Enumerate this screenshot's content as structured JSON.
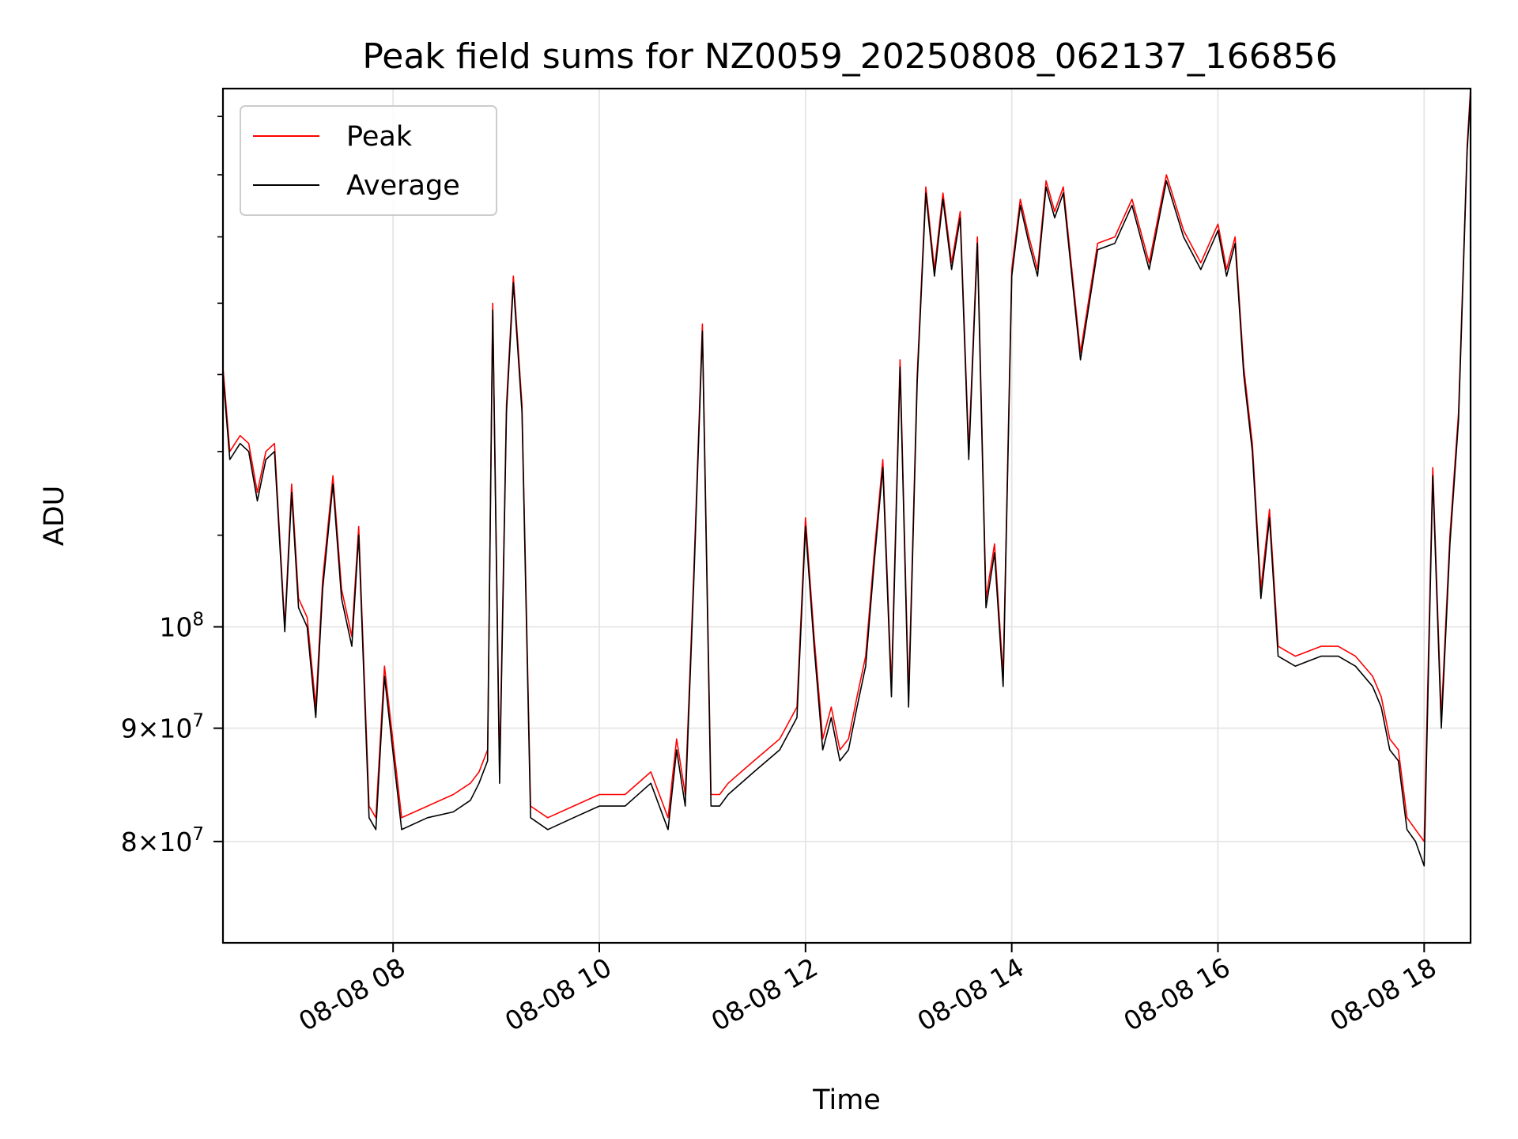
{
  "chart_data": {
    "type": "line",
    "title": "Peak field sums for NZ0059_20250808_062137_166856",
    "xlabel": "Time",
    "ylabel": "ADU",
    "yscale": "log",
    "ylim": [
      72000000,
      175000000
    ],
    "xlim": [
      "08-08 06:21",
      "08-08 18:27"
    ],
    "grid": true,
    "legend_position": "top-left",
    "x_ticks": [
      {
        "value": "08-08 08:00",
        "label": "08-08 08"
      },
      {
        "value": "08-08 10:00",
        "label": "08-08 10"
      },
      {
        "value": "08-08 12:00",
        "label": "08-08 12"
      },
      {
        "value": "08-08 14:00",
        "label": "08-08 14"
      },
      {
        "value": "08-08 16:00",
        "label": "08-08 16"
      },
      {
        "value": "08-08 18:00",
        "label": "08-08 18"
      }
    ],
    "y_ticks": [
      {
        "value": 80000000,
        "mantissa": "8",
        "exp": "7"
      },
      {
        "value": 90000000,
        "mantissa": "9",
        "exp": "7"
      },
      {
        "value": 100000000,
        "mantissa": "",
        "exp": "8"
      }
    ],
    "x": [
      "08-08 06:21",
      "08-08 06:25",
      "08-08 06:31",
      "08-08 06:36",
      "08-08 06:41",
      "08-08 06:46",
      "08-08 06:51",
      "08-08 06:57",
      "08-08 07:01",
      "08-08 07:05",
      "08-08 07:10",
      "08-08 07:15",
      "08-08 07:19",
      "08-08 07:25",
      "08-08 07:30",
      "08-08 07:36",
      "08-08 07:40",
      "08-08 07:46",
      "08-08 07:50",
      "08-08 07:55",
      "08-08 08:05",
      "08-08 08:20",
      "08-08 08:35",
      "08-08 08:45",
      "08-08 08:50",
      "08-08 08:55",
      "08-08 08:58",
      "08-08 09:02",
      "08-08 09:06",
      "08-08 09:10",
      "08-08 09:15",
      "08-08 09:20",
      "08-08 09:30",
      "08-08 09:45",
      "08-08 10:00",
      "08-08 10:15",
      "08-08 10:30",
      "08-08 10:40",
      "08-08 10:45",
      "08-08 10:50",
      "08-08 10:55",
      "08-08 11:00",
      "08-08 11:05",
      "08-08 11:10",
      "08-08 11:15",
      "08-08 11:30",
      "08-08 11:45",
      "08-08 11:55",
      "08-08 12:00",
      "08-08 12:05",
      "08-08 12:10",
      "08-08 12:15",
      "08-08 12:20",
      "08-08 12:25",
      "08-08 12:30",
      "08-08 12:35",
      "08-08 12:40",
      "08-08 12:45",
      "08-08 12:50",
      "08-08 12:55",
      "08-08 13:00",
      "08-08 13:05",
      "08-08 13:10",
      "08-08 13:15",
      "08-08 13:20",
      "08-08 13:25",
      "08-08 13:30",
      "08-08 13:35",
      "08-08 13:40",
      "08-08 13:45",
      "08-08 13:50",
      "08-08 13:55",
      "08-08 14:00",
      "08-08 14:05",
      "08-08 14:10",
      "08-08 14:15",
      "08-08 14:20",
      "08-08 14:25",
      "08-08 14:30",
      "08-08 14:40",
      "08-08 14:50",
      "08-08 15:00",
      "08-08 15:10",
      "08-08 15:20",
      "08-08 15:30",
      "08-08 15:40",
      "08-08 15:50",
      "08-08 16:00",
      "08-08 16:05",
      "08-08 16:10",
      "08-08 16:15",
      "08-08 16:20",
      "08-08 16:25",
      "08-08 16:30",
      "08-08 16:35",
      "08-08 16:45",
      "08-08 17:00",
      "08-08 17:10",
      "08-08 17:20",
      "08-08 17:30",
      "08-08 17:35",
      "08-08 17:40",
      "08-08 17:45",
      "08-08 17:50",
      "08-08 17:55",
      "08-08 18:00",
      "08-08 18:05",
      "08-08 18:10",
      "08-08 18:15",
      "08-08 18:20",
      "08-08 18:25",
      "08-08 18:27"
    ],
    "series": [
      {
        "name": "Peak",
        "color": "#ff0000",
        "values": [
          131000000,
          120000000,
          122000000,
          121000000,
          115000000,
          120000000,
          121000000,
          100000000,
          116000000,
          103000000,
          101000000,
          92000000,
          105000000,
          117000000,
          104000000,
          99000000,
          111000000,
          83000000,
          82000000,
          96000000,
          82000000,
          83000000,
          84000000,
          85000000,
          86000000,
          88000000,
          140000000,
          86000000,
          126000000,
          144000000,
          126000000,
          83000000,
          82000000,
          83000000,
          84000000,
          84000000,
          86000000,
          82000000,
          89000000,
          84000000,
          106000000,
          137000000,
          84000000,
          84000000,
          85000000,
          87000000,
          89000000,
          92000000,
          112000000,
          99000000,
          89000000,
          92000000,
          88000000,
          89000000,
          93000000,
          97000000,
          108000000,
          119000000,
          94000000,
          132000000,
          93000000,
          130000000,
          158000000,
          145000000,
          157000000,
          146000000,
          154000000,
          120000000,
          150000000,
          103000000,
          109000000,
          95000000,
          145000000,
          156000000,
          150000000,
          145000000,
          159000000,
          154000000,
          158000000,
          133000000,
          149000000,
          150000000,
          156000000,
          146000000,
          160000000,
          151000000,
          146000000,
          152000000,
          145000000,
          150000000,
          131000000,
          121000000,
          104000000,
          113000000,
          98000000,
          97000000,
          98000000,
          98000000,
          97000000,
          95000000,
          93000000,
          89000000,
          88000000,
          82000000,
          81000000,
          80000000,
          118000000,
          91000000,
          110000000,
          125000000,
          165000000,
          175000000
        ]
      },
      {
        "name": "Average",
        "color": "#000000",
        "values": [
          130000000,
          119000000,
          121000000,
          120000000,
          114000000,
          119000000,
          120000000,
          99500000,
          115000000,
          102000000,
          100000000,
          91000000,
          104000000,
          116000000,
          103000000,
          98000000,
          110000000,
          82000000,
          81000000,
          95000000,
          81000000,
          82000000,
          82500000,
          83500000,
          85000000,
          87000000,
          139000000,
          85000000,
          125000000,
          143000000,
          125000000,
          82000000,
          81000000,
          82000000,
          83000000,
          83000000,
          85000000,
          81000000,
          88000000,
          83000000,
          105000000,
          136000000,
          83000000,
          83000000,
          84000000,
          86000000,
          88000000,
          91000000,
          111000000,
          98000000,
          88000000,
          91000000,
          87000000,
          88000000,
          92000000,
          96000000,
          107000000,
          118000000,
          93000000,
          131000000,
          92000000,
          129000000,
          157000000,
          144000000,
          156000000,
          145000000,
          153000000,
          119000000,
          149000000,
          102000000,
          108000000,
          94000000,
          144000000,
          155000000,
          149000000,
          144000000,
          158000000,
          153000000,
          157000000,
          132000000,
          148000000,
          149000000,
          155000000,
          145000000,
          159000000,
          150000000,
          145000000,
          151000000,
          144000000,
          149000000,
          130000000,
          120000000,
          103000000,
          112000000,
          97000000,
          96000000,
          97000000,
          97000000,
          96000000,
          94000000,
          92000000,
          88000000,
          87000000,
          81000000,
          80000000,
          78000000,
          117000000,
          90000000,
          109000000,
          124000000,
          164000000,
          174000000
        ]
      }
    ]
  }
}
